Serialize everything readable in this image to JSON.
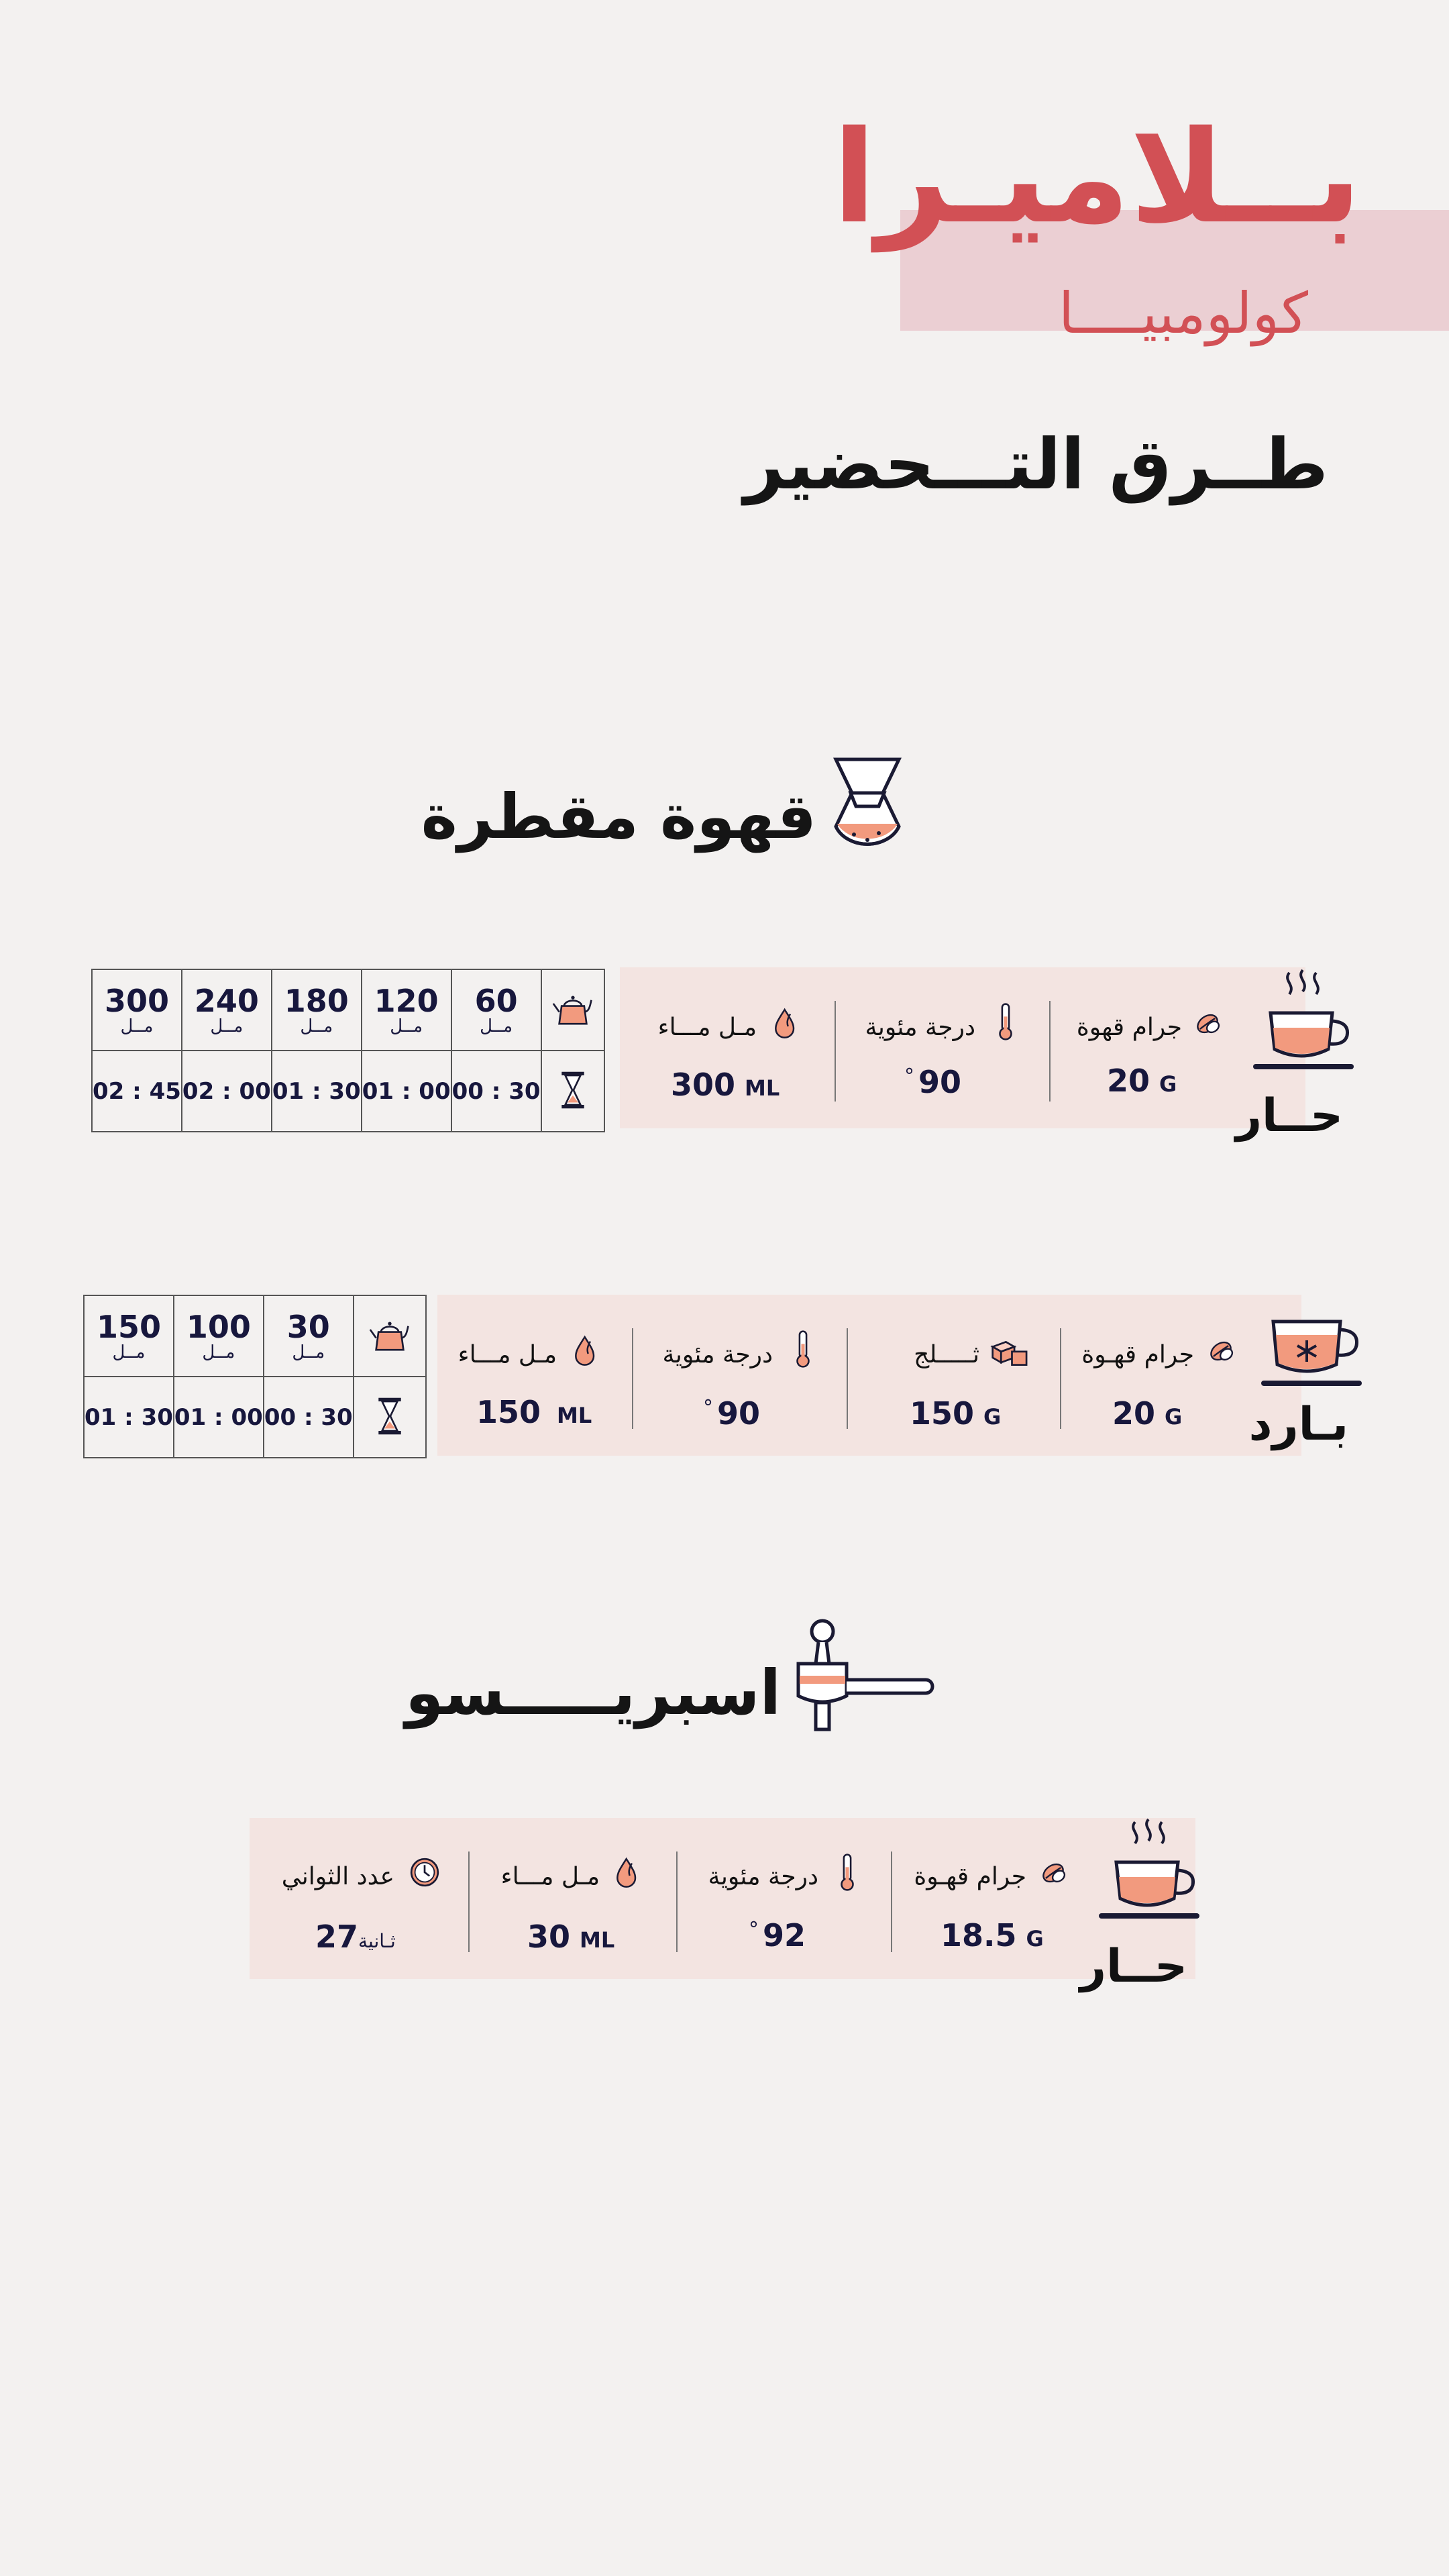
{
  "header": {
    "brand_title": "بــلاميـرا",
    "brand_subtitle": "كولومبيــــا",
    "methods_heading": "طــرق التـــحضير"
  },
  "colors": {
    "accent_red": "#d25055",
    "band_pink": "#ebcfd3",
    "panel_pink": "#f3e4e1",
    "icon_orange": "#f29a7e",
    "navy": "#17173d"
  },
  "sections": {
    "drip": {
      "title": "قهوة مقطرة",
      "icon": "chemex-icon",
      "hot": {
        "label": "حــار",
        "icon": "hot-cup-icon",
        "coffee": {
          "label": "جرام قهوة",
          "value": "20",
          "unit": "G",
          "icon": "coffee-bean-icon"
        },
        "temp": {
          "label": "درجة مئوية",
          "value": "90",
          "unit": "°",
          "icon": "thermometer-icon"
        },
        "water": {
          "label": "مـل مـــاء",
          "value": "300",
          "unit": "ML",
          "icon": "water-drop-icon"
        },
        "pours": {
          "volumes": [
            "60",
            "120",
            "180",
            "240",
            "300"
          ],
          "volume_unit": "مــل",
          "times": [
            "00 : 30",
            "01 : 00",
            "01 : 30",
            "02 : 00",
            "02 : 45"
          ]
        }
      },
      "cold": {
        "label": "بـارد",
        "icon": "iced-cup-icon",
        "coffee": {
          "label": "جرام قهـوة",
          "value": "20",
          "unit": "G",
          "icon": "coffee-bean-icon"
        },
        "ice": {
          "label": "ثـــــلج",
          "value": "150",
          "unit": "G",
          "icon": "ice-cubes-icon"
        },
        "temp": {
          "label": "درجة مئوية",
          "value": "90",
          "unit": "°",
          "icon": "thermometer-icon"
        },
        "water": {
          "label": "مـل مـــاء",
          "value": "150",
          "unit": "ML",
          "icon": "water-drop-icon"
        },
        "pours": {
          "volumes": [
            "30",
            "100",
            "150"
          ],
          "volume_unit": "مــل",
          "times": [
            "00 : 30",
            "01 : 00",
            "01 : 30"
          ]
        }
      }
    },
    "espresso": {
      "title": "اسبريـــــسو",
      "icon": "portafilter-icon",
      "hot": {
        "label": "حــار",
        "icon": "hot-cup-icon",
        "coffee": {
          "label": "جرام قهـوة",
          "value": "18.5",
          "unit": "G",
          "icon": "coffee-bean-icon"
        },
        "temp": {
          "label": "درجة مئوية",
          "value": "92",
          "unit": "°",
          "icon": "thermometer-icon"
        },
        "water": {
          "label": "مـل مـــاء",
          "value": "30",
          "unit": "ML",
          "icon": "water-drop-icon"
        },
        "seconds": {
          "label": "عدد الثواني",
          "value": "27",
          "unit": "ثـانية",
          "icon": "clock-icon"
        }
      }
    }
  }
}
